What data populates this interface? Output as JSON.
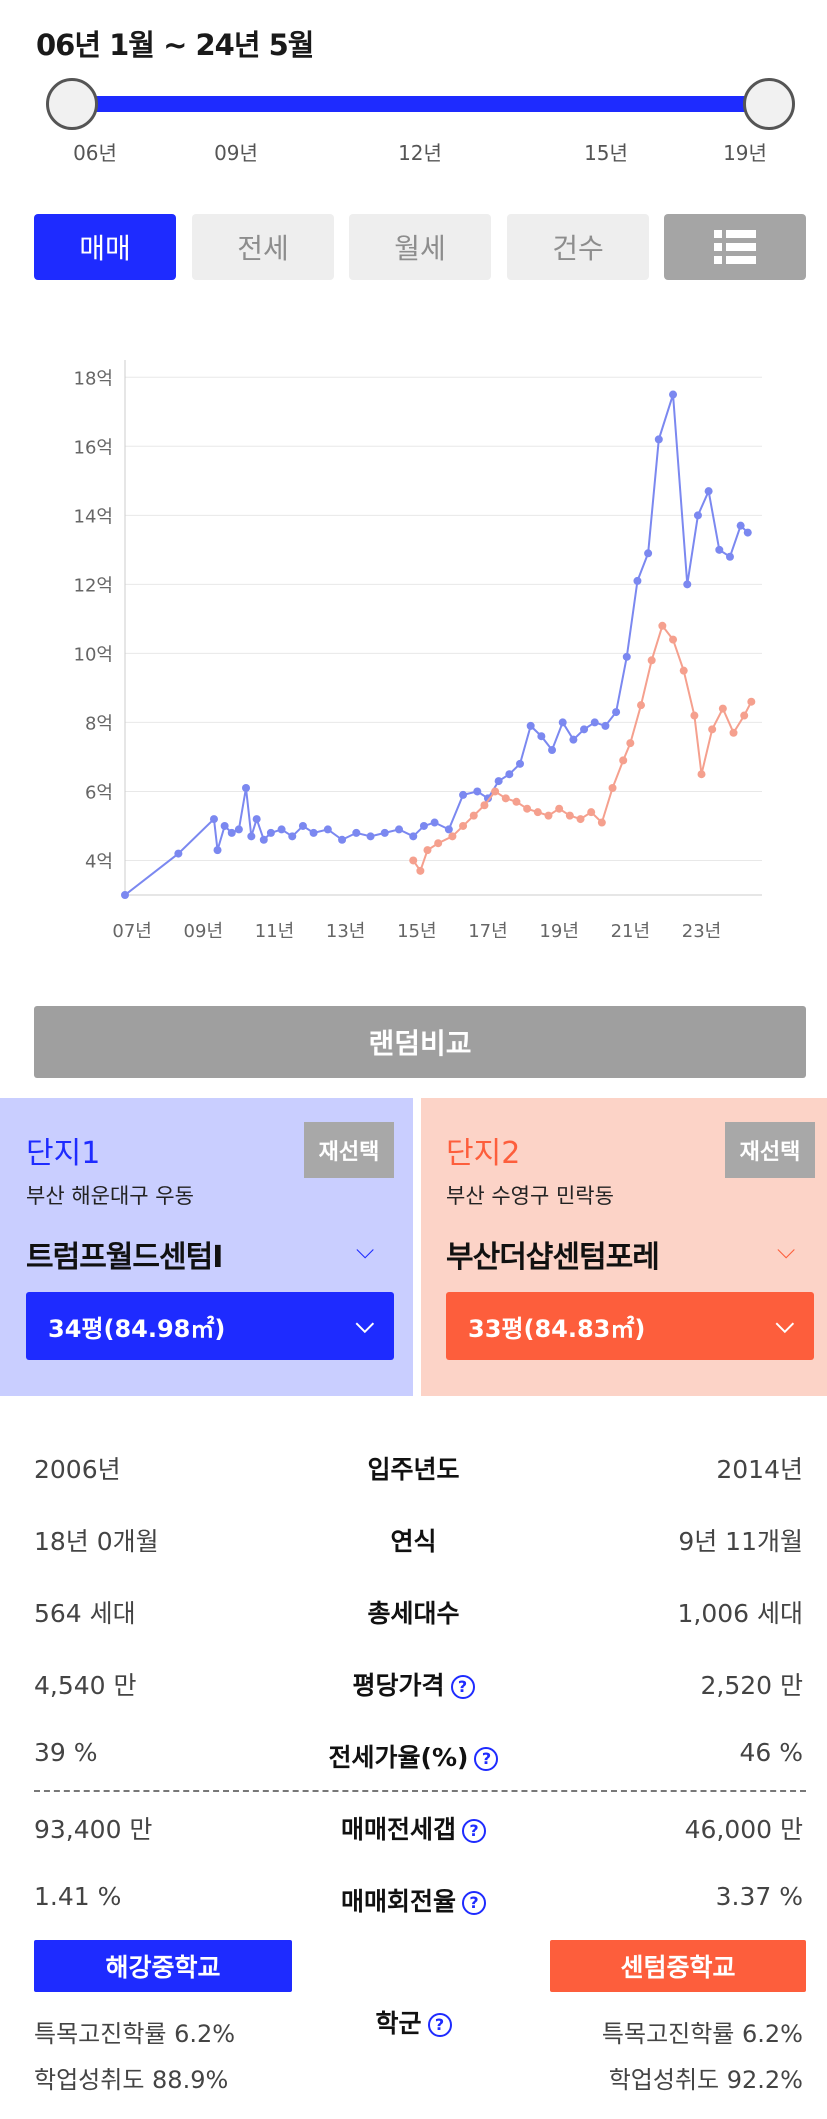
{
  "period_label": "06년 1월 ~ 24년 5월",
  "slider": {
    "ticks": [
      "06년",
      "09년",
      "12년",
      "15년",
      "19년"
    ]
  },
  "tabs": [
    {
      "label": "매매",
      "active": true
    },
    {
      "label": "전세",
      "active": false
    },
    {
      "label": "월세",
      "active": false
    },
    {
      "label": "건수",
      "active": false
    }
  ],
  "list_icon": "list-view-icon",
  "colors": {
    "accent_blue": "#1e2bff",
    "accent_orange": "#fd5e3c",
    "series1_line": "#7b88f0",
    "series2_line": "#f5a08e"
  },
  "chart_data": {
    "type": "line",
    "y_tick_labels": [
      "4억",
      "6억",
      "8억",
      "10억",
      "12억",
      "14억",
      "16억",
      "18억"
    ],
    "y_ticks": [
      4,
      6,
      8,
      10,
      12,
      14,
      16,
      18
    ],
    "ylim": [
      3,
      18.5
    ],
    "x_tick_labels": [
      "07년",
      "09년",
      "11년",
      "13년",
      "15년",
      "17년",
      "19년",
      "21년",
      "23년"
    ],
    "x_ticks": [
      2007,
      2009,
      2011,
      2013,
      2015,
      2017,
      2019,
      2021,
      2023
    ],
    "xlim": [
      2006.8,
      2024.7
    ],
    "series": [
      {
        "color": "#7b88f0",
        "x": [
          2006.8,
          2008.3,
          2009.3,
          2009.4,
          2009.6,
          2009.8,
          2010.0,
          2010.2,
          2010.35,
          2010.5,
          2010.7,
          2010.9,
          2011.2,
          2011.5,
          2011.8,
          2012.1,
          2012.5,
          2012.9,
          2013.3,
          2013.7,
          2014.1,
          2014.5,
          2014.9,
          2015.2,
          2015.5,
          2015.9,
          2016.3,
          2016.7,
          2017.0,
          2017.3,
          2017.6,
          2017.9,
          2018.2,
          2018.5,
          2018.8,
          2019.1,
          2019.4,
          2019.7,
          2020.0,
          2020.3,
          2020.6,
          2020.9,
          2021.2,
          2021.5,
          2021.8,
          2022.2,
          2022.6,
          2022.9,
          2023.2,
          2023.5,
          2023.8,
          2024.1,
          2024.3
        ],
        "y": [
          3.0,
          4.2,
          5.2,
          4.3,
          5.0,
          4.8,
          4.9,
          6.1,
          4.7,
          5.2,
          4.6,
          4.8,
          4.9,
          4.7,
          5.0,
          4.8,
          4.9,
          4.6,
          4.8,
          4.7,
          4.8,
          4.9,
          4.7,
          5.0,
          5.1,
          4.9,
          5.9,
          6.0,
          5.8,
          6.3,
          6.5,
          6.8,
          7.9,
          7.6,
          7.2,
          8.0,
          7.5,
          7.8,
          8.0,
          7.9,
          8.3,
          9.9,
          12.1,
          12.9,
          16.2,
          17.5,
          12.0,
          14.0,
          14.7,
          13.0,
          12.8,
          13.7,
          13.5
        ]
      },
      {
        "color": "#f5a08e",
        "x": [
          2014.9,
          2015.1,
          2015.3,
          2015.6,
          2016.0,
          2016.3,
          2016.6,
          2016.9,
          2017.2,
          2017.5,
          2017.8,
          2018.1,
          2018.4,
          2018.7,
          2019.0,
          2019.3,
          2019.6,
          2019.9,
          2020.2,
          2020.5,
          2020.8,
          2021.0,
          2021.3,
          2021.6,
          2021.9,
          2022.2,
          2022.5,
          2022.8,
          2023.0,
          2023.3,
          2023.6,
          2023.9,
          2024.2,
          2024.4
        ],
        "y": [
          4.0,
          3.7,
          4.3,
          4.5,
          4.7,
          5.0,
          5.3,
          5.6,
          6.0,
          5.8,
          5.7,
          5.5,
          5.4,
          5.3,
          5.5,
          5.3,
          5.2,
          5.4,
          5.1,
          6.1,
          6.9,
          7.4,
          8.5,
          9.8,
          10.8,
          10.4,
          9.5,
          8.2,
          6.5,
          7.8,
          8.4,
          7.7,
          8.2,
          8.6
        ]
      }
    ]
  },
  "random_compare_label": "랜덤비교",
  "complex1": {
    "title": "단지1",
    "reselect": "재선택",
    "region": "부산 해운대구 우동",
    "name": "트럼프월드센텀I",
    "size": "34평(84.98㎡)"
  },
  "complex2": {
    "title": "단지2",
    "reselect": "재선택",
    "region": "부산 수영구 민락동",
    "name": "부산더샵센텀포레",
    "size": "33평(84.83㎡)"
  },
  "compare_rows": [
    {
      "left": "2006년",
      "label": "입주년도",
      "right": "2014년",
      "help": false
    },
    {
      "left": "18년 0개월",
      "label": "연식",
      "right": "9년 11개월",
      "help": false
    },
    {
      "left": "564 세대",
      "label": "총세대수",
      "right": "1,006 세대",
      "help": false
    },
    {
      "left": "4,540 만",
      "label": "평당가격",
      "right": "2,520 만",
      "help": true
    },
    {
      "left": "39 %",
      "label": "전세가율(%)",
      "right": "46 %",
      "help": true
    },
    {
      "left": "93,400 만",
      "label": "매매전세갭",
      "right": "46,000 만",
      "help": true
    },
    {
      "left": "1.41 %",
      "label": "매매회전율",
      "right": "3.37 %",
      "help": true
    }
  ],
  "help_symbol": "?",
  "school": {
    "label": "학군",
    "left_name": "해강중학교",
    "right_name": "센텀중학교",
    "left_special": "특목고진학률 6.2%",
    "left_score": "학업성취도 88.9%",
    "right_special": "특목고진학률 6.2%",
    "right_score": "학업성취도 92.2%"
  }
}
